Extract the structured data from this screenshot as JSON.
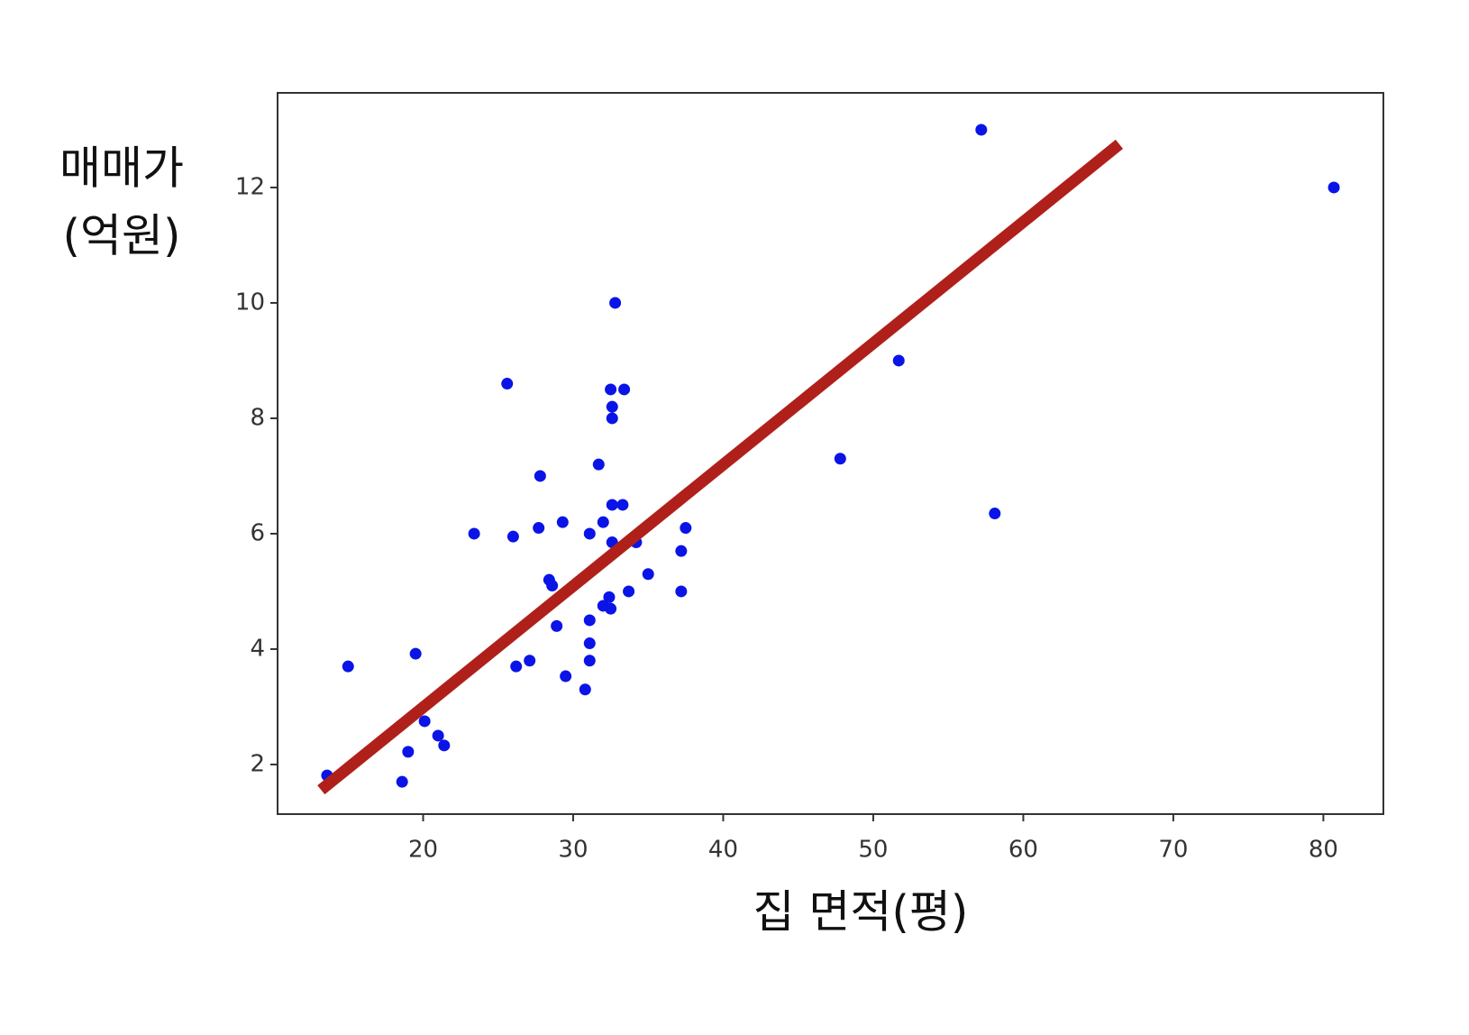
{
  "chart_data": {
    "type": "scatter",
    "xlabel": "집 면적(평)",
    "ylabel": [
      "매매가",
      "(억원)"
    ],
    "xlim": [
      10.3,
      84
    ],
    "ylim": [
      1.14,
      13.64
    ],
    "xticks": [
      20,
      30,
      40,
      50,
      60,
      70,
      80
    ],
    "yticks": [
      2,
      4,
      6,
      8,
      10,
      12
    ],
    "color": "#0a14e6",
    "x": [
      57.2,
      80.7,
      32.8,
      51.7,
      25.6,
      32.5,
      33.4,
      32.6,
      32.6,
      47.8,
      27.8,
      31.7,
      32.6,
      33.3,
      58.1,
      29.3,
      32.0,
      27.7,
      37.5,
      23.4,
      31.1,
      26.0,
      32.6,
      34.2,
      37.2,
      35.0,
      28.4,
      28.6,
      33.7,
      37.2,
      32.4,
      32.0,
      32.5,
      31.1,
      28.9,
      31.1,
      19.5,
      31.1,
      27.1,
      26.2,
      15.0,
      29.5,
      30.8,
      20.1,
      21.0,
      21.4,
      19.0,
      13.6,
      18.6
    ],
    "values": [
      13.0,
      12.0,
      10.0,
      9.0,
      8.6,
      8.5,
      8.5,
      8.2,
      8.0,
      7.3,
      7.0,
      7.2,
      6.5,
      6.5,
      6.35,
      6.2,
      6.2,
      6.1,
      6.1,
      6.0,
      6.0,
      5.95,
      5.85,
      5.85,
      5.7,
      5.3,
      5.2,
      5.1,
      5.0,
      5.0,
      4.9,
      4.75,
      4.7,
      4.5,
      4.4,
      4.1,
      3.92,
      3.8,
      3.8,
      3.7,
      3.7,
      3.53,
      3.3,
      2.75,
      2.5,
      2.33,
      2.22,
      1.81,
      1.7
    ],
    "trend_line": {
      "color": "#b0201a",
      "x": [
        13.2,
        66.4
      ],
      "values": [
        1.56,
        12.75
      ]
    }
  }
}
